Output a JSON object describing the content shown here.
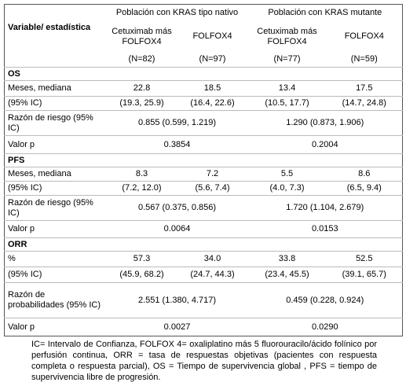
{
  "table": {
    "header": {
      "variable": "Variable/ estadística",
      "groups": [
        "Población con KRAS  tipo nativo",
        "Población con KRAS mutante"
      ],
      "columns": [
        "Cetuximab más  FOLFOX4",
        "FOLFOX4",
        "Cetuximab más  FOLFOX4",
        "FOLFOX4"
      ],
      "n": [
        "(N=82)",
        "(N=97)",
        "(N=77)",
        "(N=59)"
      ]
    },
    "sections": [
      {
        "title": "OS",
        "rows": [
          {
            "label": "Meses, mediana",
            "cells": [
              "22.8",
              "18.5",
              "13.4",
              "17.5"
            ]
          },
          {
            "label": "(95% IC)",
            "cells": [
              "(19.3, 25.9)",
              "(16.4, 22.6)",
              "(10.5, 17.7)",
              "(14.7, 24.8)"
            ]
          },
          {
            "label": "Razón de riesgo (95% IC)",
            "cells": [
              "0.855 (0.599, 1.219)",
              "1.290 (0.873, 1.906)"
            ]
          },
          {
            "label": "Valor p",
            "cells": [
              "0.3854",
              "0.2004"
            ]
          }
        ]
      },
      {
        "title": "PFS",
        "rows": [
          {
            "label": "Meses, mediana",
            "cells": [
              "8.3",
              "7.2",
              "5.5",
              "8.6"
            ]
          },
          {
            "label": "(95% IC)",
            "cells": [
              "(7.2, 12.0)",
              "(5.6, 7.4)",
              "(4.0, 7.3)",
              "(6.5, 9.4)"
            ]
          },
          {
            "label": "Razón de riesgo (95% IC)",
            "cells": [
              "0.567 (0.375, 0.856)",
              "1.720 (1.104, 2.679)"
            ]
          },
          {
            "label": "Valor p",
            "cells": [
              "0.0064",
              "0.0153"
            ]
          }
        ]
      },
      {
        "title": "ORR",
        "rows": [
          {
            "label": "%",
            "cells": [
              "57.3",
              "34.0",
              "33.8",
              "52.5"
            ]
          },
          {
            "label": "(95% IC)",
            "cells": [
              "(45.9, 68.2)",
              "(24.7, 44.3)",
              "(23.4, 45.5)",
              "(39.1, 65.7)"
            ]
          },
          {
            "label": "Razón de probabilidades  (95% IC)",
            "cells": [
              "2.551 (1.380, 4.717)",
              "0.459 (0.228, 0.924)"
            ]
          },
          {
            "label": "Valor p",
            "cells": [
              "0.0027",
              "0.0290"
            ]
          }
        ]
      }
    ],
    "footnote": "IC= Intervalo de Confianza, FOLFOX 4= oxaliplatino más 5 fluorouracilo/ácido folínico por perfusión continua, ORR = tasa de respuestas objetivas (pacientes con respuesta completa o respuesta parcial), OS = Tiempo de supervivencia global , PFS = tiempo de supervivencia  libre de progresión."
  }
}
